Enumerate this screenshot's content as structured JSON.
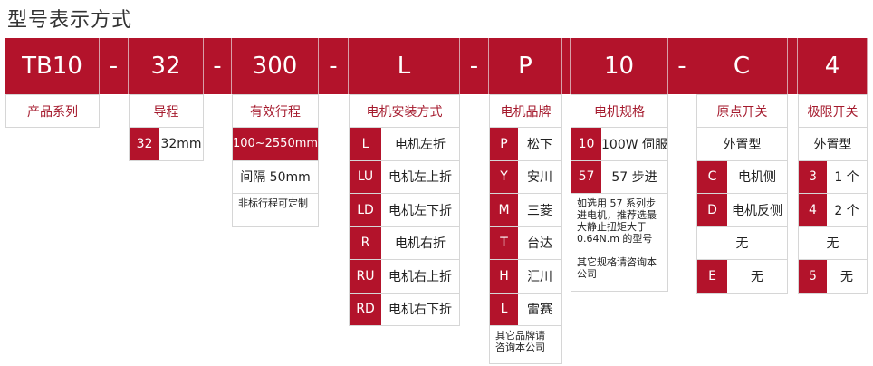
{
  "title": "型号表示方式",
  "colors": {
    "accent": "#b3132b",
    "label_text": "#a51a2d"
  },
  "header": {
    "segments": [
      "TB10",
      "-",
      "32",
      "-",
      "300",
      "-",
      "L",
      "-",
      "P",
      "",
      "10",
      "-",
      "C",
      "",
      "4"
    ]
  },
  "columns": [
    {
      "label": "产品系列",
      "rows": []
    },
    {
      "label": "导程",
      "rows": [
        {
          "type": "code",
          "code": "32",
          "text": "32mm"
        }
      ]
    },
    {
      "label": "有效行程",
      "rows": [
        {
          "type": "highlight",
          "text": "100~2550mm"
        },
        {
          "type": "plain",
          "text": "间隔 50mm"
        },
        {
          "type": "note",
          "text": "非标行程可定制"
        }
      ]
    },
    {
      "label": "电机安装方式",
      "rows": [
        {
          "type": "code",
          "code": "L",
          "text": "电机左折"
        },
        {
          "type": "code",
          "code": "LU",
          "text": "电机左上折"
        },
        {
          "type": "code",
          "code": "LD",
          "text": "电机左下折"
        },
        {
          "type": "code",
          "code": "R",
          "text": "电机右折"
        },
        {
          "type": "code",
          "code": "RU",
          "text": "电机右上折"
        },
        {
          "type": "code",
          "code": "RD",
          "text": "电机右下折"
        }
      ]
    },
    {
      "label": "电机品牌",
      "rows": [
        {
          "type": "code",
          "code": "P",
          "text": "松下"
        },
        {
          "type": "code",
          "code": "Y",
          "text": "安川"
        },
        {
          "type": "code",
          "code": "M",
          "text": "三菱"
        },
        {
          "type": "code",
          "code": "T",
          "text": "台达"
        },
        {
          "type": "code",
          "code": "H",
          "text": "汇川"
        },
        {
          "type": "code",
          "code": "L",
          "text": "雷赛"
        },
        {
          "type": "note",
          "text": "其它品牌请\n咨询本公司"
        }
      ]
    },
    {
      "label": "电机规格",
      "rows": [
        {
          "type": "code",
          "code": "10",
          "text": "100W 伺服"
        },
        {
          "type": "code",
          "code": "57",
          "text": "57 步进"
        },
        {
          "type": "note",
          "text": "如选用 57 系列步\n进电机，推荐选最\n大静止扭矩大于\n0.64N.m 的型号\n\n其它规格请咨询本\n公司"
        }
      ]
    },
    {
      "label": "原点开关",
      "rows": [
        {
          "type": "plain",
          "text": "外置型"
        },
        {
          "type": "code",
          "code": "C",
          "text": "电机侧"
        },
        {
          "type": "code",
          "code": "D",
          "text": "电机反侧"
        },
        {
          "type": "plain",
          "text": "无"
        },
        {
          "type": "code",
          "code": "E",
          "text": "无"
        }
      ]
    },
    {
      "label": "极限开关",
      "rows": [
        {
          "type": "plain",
          "text": "外置型"
        },
        {
          "type": "code",
          "code": "3",
          "text": "1 个"
        },
        {
          "type": "code",
          "code": "4",
          "text": "2 个"
        },
        {
          "type": "plain",
          "text": "无"
        },
        {
          "type": "code",
          "code": "5",
          "text": "无"
        }
      ]
    }
  ]
}
